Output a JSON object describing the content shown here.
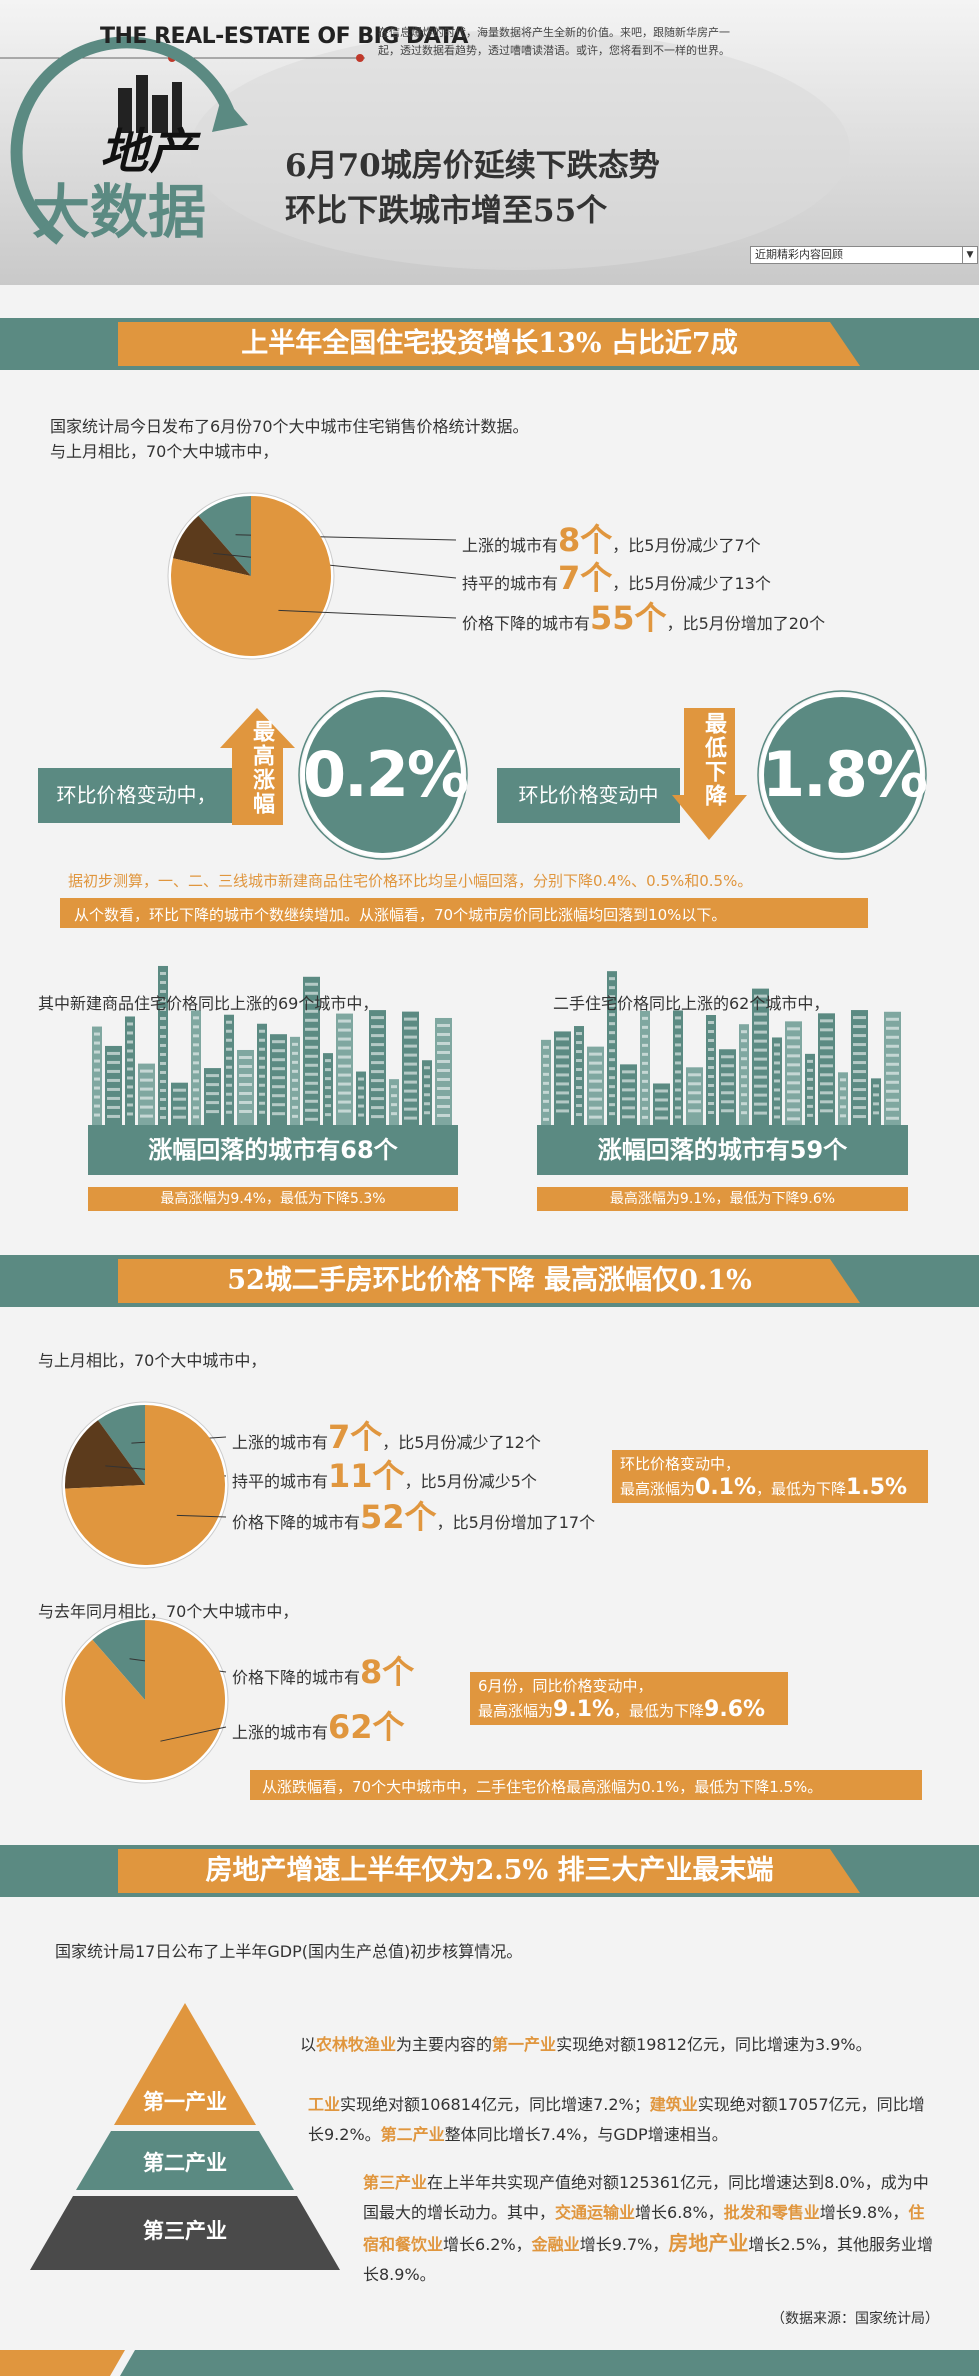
{
  "header": {
    "brand": "THE  REAL-ESTATE OF BIG DATA",
    "intro": [
      "在信息爆炸的时代，海量数据将产生全新的价值。来吧，跟随新华房产一",
      "起，透过数据看趋势，透过嘈嘈读潜语。或许，您将看到不一样的世界。"
    ],
    "logo": [
      "地产",
      "大数据"
    ],
    "headline": [
      "6月70城房价延续下跌态势",
      "环比下跌城市增至55个"
    ],
    "menu": "近期精彩内容回顾"
  },
  "section1": {
    "title": "上半年全国住宅投资增长13% 占比近7成",
    "intro": [
      "国家统计局今日发布了6月份70个大中城市住宅销售价格统计数据。",
      "与上月相比，70个大中城市中，"
    ],
    "max_box": {
      "label": "环比价格变动中，",
      "arrow": "最高涨幅",
      "value": "0.2%"
    },
    "min_box": {
      "label": "环比价格变动中",
      "arrow": "最低下降",
      "value": "1.8%"
    },
    "note": "据初步测算，一、二、三线城市新建商品住宅价格环比均呈小幅回落，分别下降0.4%、0.5%和0.5%。",
    "bar": "从个数看，环比下降的城市个数继续增加。从涨幅看，70个城市房价同比涨幅均回落到10%以下。",
    "panels": [
      {
        "text": "其中新建商品住宅价格同比上涨的69个城市中，",
        "banner": "涨幅回落的城市有68个",
        "range": "最高涨幅为9.4%，最低为下降5.3%"
      },
      {
        "text": "二手住宅价格同比上涨的62个城市中，",
        "banner": "涨幅回落的城市有59个",
        "range": "最高涨幅为9.1%，最低为下降9.6%"
      }
    ]
  },
  "section2": {
    "title": "52城二手房环比价格下降 最高涨幅仅0.1%",
    "intro": [
      "与上月相比，70个大中城市中，",
      "与去年同月相比，70个大中城市中，"
    ],
    "box1": {
      "lines": [
        [
          {
            "text": "环比价格变动中，"
          }
        ],
        [
          {
            "text": "最高涨幅为"
          },
          {
            "text": "0.1%",
            "style": "big"
          },
          {
            "text": "，最低为下降"
          },
          {
            "text": "1.5%",
            "style": "big"
          }
        ]
      ]
    },
    "box2": {
      "lines": [
        [
          {
            "text": "6月份，同比价格变动中，"
          }
        ],
        [
          {
            "text": "最高涨幅为"
          },
          {
            "text": "9.1%",
            "style": "big"
          },
          {
            "text": "，最低为下降"
          },
          {
            "text": "9.6%",
            "style": "big"
          }
        ]
      ]
    },
    "bar": "从涨跌幅看，70个大中城市中，二手住宅价格最高涨幅为0.1%，最低为下降1.5%。"
  },
  "section3": {
    "title": "房地产增速上半年仅为2.5% 排三大产业最末端",
    "intro": "国家统计局17日公布了上半年GDP(国内生产总值)初步核算情况。",
    "pyramid": [
      "第一产业",
      "第二产业",
      "第三产业"
    ],
    "paragraphs": [
      [
        {
          "text": "以"
        },
        {
          "text": "农林牧渔业",
          "style": "highlight"
        },
        {
          "text": "为主要内容的"
        },
        {
          "text": "第一产业",
          "style": "highlight"
        },
        {
          "text": "实现绝对额19812亿元，同比增速为3.9%。"
        }
      ],
      [
        {
          "text": "工业",
          "style": "highlight"
        },
        {
          "text": "实现绝对额106814亿元，同比增速7.2%；"
        },
        {
          "text": "建筑业",
          "style": "highlight"
        },
        {
          "text": "实现绝对额17057亿元，同比增长9.2%。"
        },
        {
          "text": "第二产业",
          "style": "highlight"
        },
        {
          "text": "整体同比增长7.4%，与GDP增速相当。"
        }
      ],
      [
        {
          "text": "第三产业",
          "style": "highlight"
        },
        {
          "text": "在上半年共实现产值绝对额125361亿元，同比增速达到8.0%，成为中国最大的增长动力。其中，"
        },
        {
          "text": "交通运输业",
          "style": "highlight"
        },
        {
          "text": "增长6.8%，"
        },
        {
          "text": "批发和零售业",
          "style": "highlight"
        },
        {
          "text": "增长9.8%，"
        },
        {
          "text": "住宿和餐饮业",
          "style": "highlight"
        },
        {
          "text": "增长6.2%，"
        },
        {
          "text": "金融业",
          "style": "highlight"
        },
        {
          "text": "增长9.7%，"
        },
        {
          "text": "房地产业",
          "style": "highlight-big"
        },
        {
          "text": "增长2.5%，其他服务业增长8.9%。"
        }
      ]
    ],
    "source": "（数据来源：国家统计局）"
  },
  "chart_data": [
    {
      "type": "pie",
      "categories": [
        "上涨的城市有",
        "持平的城市有",
        "价格下降的城市有"
      ],
      "values": [
        8,
        7,
        55
      ],
      "value_labels": [
        "8个",
        "7个",
        "55个"
      ],
      "annotations": [
        "，比5月份减少了7个",
        "，比5月份减少了13个",
        "，比5月份增加了20个"
      ],
      "colors": [
        "#5b8a82",
        "#5c3b1c",
        "#e0963e"
      ]
    },
    {
      "type": "pie",
      "categories": [
        "上涨的城市有",
        "持平的城市有",
        "价格下降的城市有"
      ],
      "values": [
        7,
        11,
        52
      ],
      "value_labels": [
        "7个",
        "11个",
        "52个"
      ],
      "annotations": [
        "，比5月份减少了12个",
        "，比5月份减少5个",
        "，比5月份增加了17个"
      ],
      "colors": [
        "#5b8a82",
        "#5c3b1c",
        "#e0963e"
      ]
    },
    {
      "type": "pie",
      "categories": [
        "价格下降的城市有",
        "上涨的城市有"
      ],
      "values": [
        8,
        62
      ],
      "value_labels": [
        "8个",
        "62个"
      ],
      "colors": [
        "#5b8a82",
        "#e0963e"
      ]
    }
  ]
}
